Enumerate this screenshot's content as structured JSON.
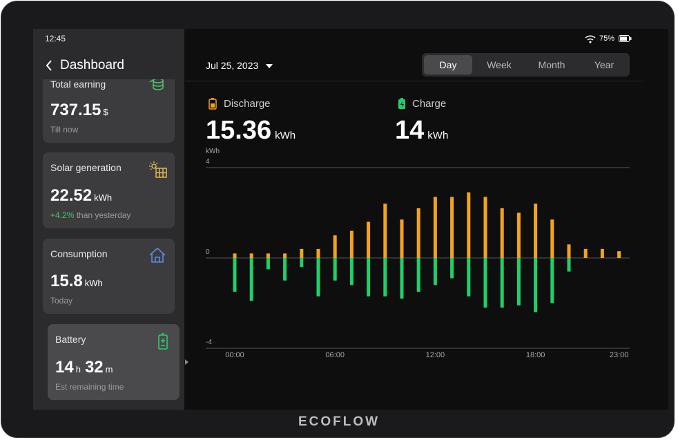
{
  "status": {
    "time": "12:45",
    "battery": "75%"
  },
  "sidebar": {
    "title": "Dashboard",
    "cards": [
      {
        "title": "Total earning",
        "value": "737.15",
        "unit": "$",
        "note": "Till now"
      },
      {
        "title": "Solar generation",
        "value": "22.52",
        "unit": "kWh",
        "change": "+4.2%",
        "note": "than yesterday"
      },
      {
        "title": "Consumption",
        "value": "15.8",
        "unit": "kWh",
        "note": "Today"
      },
      {
        "title": "Battery",
        "hours": "14",
        "hours_unit": "h",
        "minutes": "32",
        "minutes_unit": "m",
        "note": "Est remaining time"
      }
    ]
  },
  "date": "Jul 25, 2023",
  "tabs": [
    "Day",
    "Week",
    "Month",
    "Year"
  ],
  "summary": {
    "discharge": {
      "value": "15.36",
      "unit": "kWh"
    },
    "charge": {
      "value": "14",
      "unit": "kWh"
    }
  },
  "brand": "ECOFLOW",
  "chart_data": {
    "type": "bar",
    "y_label": "kWh",
    "categories": [
      "00:00",
      null,
      null,
      null,
      null,
      null,
      "06:00",
      null,
      null,
      null,
      null,
      null,
      "12:00",
      null,
      null,
      null,
      null,
      null,
      "18:00",
      null,
      null,
      null,
      null,
      "23:00"
    ],
    "series": [
      {
        "name": "Discharge",
        "color": "#f5a31a",
        "values": [
          0.2,
          0.2,
          0.2,
          0.2,
          0.4,
          0.4,
          1.0,
          1.2,
          1.6,
          2.4,
          1.7,
          2.2,
          2.7,
          2.7,
          2.9,
          2.7,
          2.2,
          2.0,
          2.4,
          1.7,
          0.6,
          0.4,
          0.4,
          0.3
        ]
      },
      {
        "name": "Charge",
        "color": "#1fcf6a",
        "values": [
          -1.5,
          -1.9,
          -0.5,
          -1.0,
          -0.4,
          -1.7,
          -1.0,
          -1.2,
          -1.7,
          -1.7,
          -1.8,
          -1.5,
          -1.2,
          -0.9,
          -1.7,
          -2.2,
          -2.2,
          -2.1,
          -2.4,
          -2.0,
          -0.6,
          0,
          0,
          0
        ]
      }
    ],
    "ylim": [
      -4,
      4
    ],
    "yticks": [
      -4,
      0,
      4
    ],
    "grid": true
  }
}
